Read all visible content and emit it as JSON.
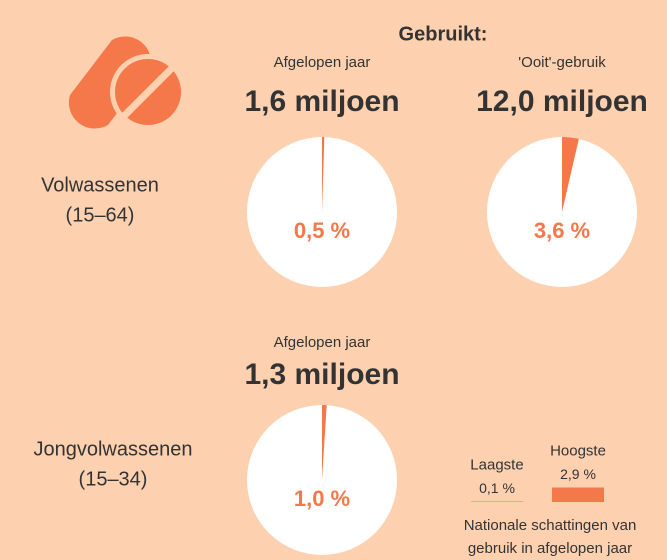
{
  "header": {
    "title": "Gebruikt:"
  },
  "rows": [
    {
      "label": [
        "Volwassenen",
        "(15–64)"
      ]
    },
    {
      "label": [
        "Jongvolwassenen",
        "(15–34)"
      ]
    }
  ],
  "chart_data": [
    {
      "type": "pie",
      "title": "Afgelopen jaar",
      "subtitle": "1,6 miljoen",
      "values": [
        0.5
      ],
      "value_labels": [
        "0,5 %"
      ],
      "color": "#f4784a"
    },
    {
      "type": "pie",
      "title": "'Ooit'-gebruik",
      "subtitle": "12,0 miljoen",
      "values": [
        3.6
      ],
      "value_labels": [
        "3,6 %"
      ],
      "color": "#f4784a"
    },
    {
      "type": "pie",
      "title": "Afgelopen jaar",
      "subtitle": "1,3 miljoen",
      "values": [
        1.0
      ],
      "value_labels": [
        "1,0 %"
      ],
      "color": "#f4784a"
    },
    {
      "type": "bar",
      "categories": [
        "Laagste",
        "Hoogste"
      ],
      "values": [
        0.1,
        2.9
      ],
      "value_labels": [
        "0,1 %",
        "2,9 %"
      ],
      "color": "#f4784a",
      "caption": [
        "Nationale schattingen van",
        "gebruik in afgelopen jaar"
      ]
    }
  ]
}
